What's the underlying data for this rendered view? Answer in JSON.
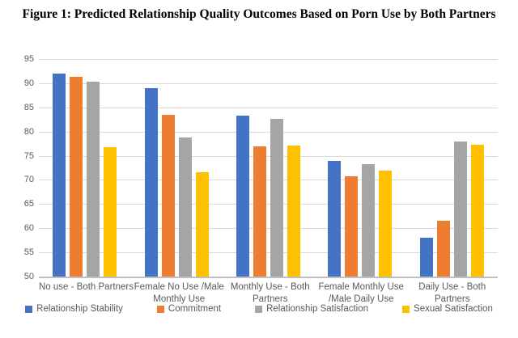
{
  "figure_title": "Figure 1: Predicted Relationship Quality Outcomes Based on Porn Use by Both Partners",
  "colors": {
    "relationship_stability": "#4472C4",
    "commitment": "#ED7D31",
    "relationship_satisfaction": "#A5A5A5",
    "sexual_satisfaction": "#FFC000",
    "gridline": "#D9D9D9",
    "axis_line": "#BFBFBF",
    "axis_text": "#595959"
  },
  "chart_data": {
    "type": "bar",
    "title": "Figure 1: Predicted Relationship Quality Outcomes Based on Porn Use by Both Partners",
    "categories": [
      "No use - Both Partners",
      "Female No Use /Male Monthly Use",
      "Monthly Use - Both Partners",
      "Female Monthly Use /Male Daily Use",
      "Daily Use - Both Partners"
    ],
    "category_line_breaks": [
      [
        "No use - Both Partners"
      ],
      [
        "Female No Use /Male",
        "Monthly Use"
      ],
      [
        "Monthly Use - Both",
        "Partners"
      ],
      [
        "Female Monthly Use",
        "/Male Daily Use"
      ],
      [
        "Daily Use - Both",
        "Partners"
      ]
    ],
    "series": [
      {
        "name": "Relationship Stability",
        "color": "#4472C4",
        "values": [
          92.0,
          88.9,
          83.3,
          74.0,
          58.1
        ]
      },
      {
        "name": "Commitment",
        "color": "#ED7D31",
        "values": [
          91.4,
          83.5,
          77.0,
          70.7,
          61.6
        ]
      },
      {
        "name": "Relationship Satisfaction",
        "color": "#A5A5A5",
        "values": [
          90.3,
          78.7,
          82.6,
          73.3,
          78.0
        ]
      },
      {
        "name": "Sexual Satisfaction",
        "color": "#FFC000",
        "values": [
          76.8,
          71.6,
          77.1,
          72.0,
          77.3
        ]
      }
    ],
    "xlabel": "",
    "ylabel": "",
    "ylim": [
      50,
      95
    ],
    "yticks": [
      50,
      55,
      60,
      65,
      70,
      75,
      80,
      85,
      90,
      95
    ],
    "grid": true,
    "legend_position": "bottom"
  }
}
